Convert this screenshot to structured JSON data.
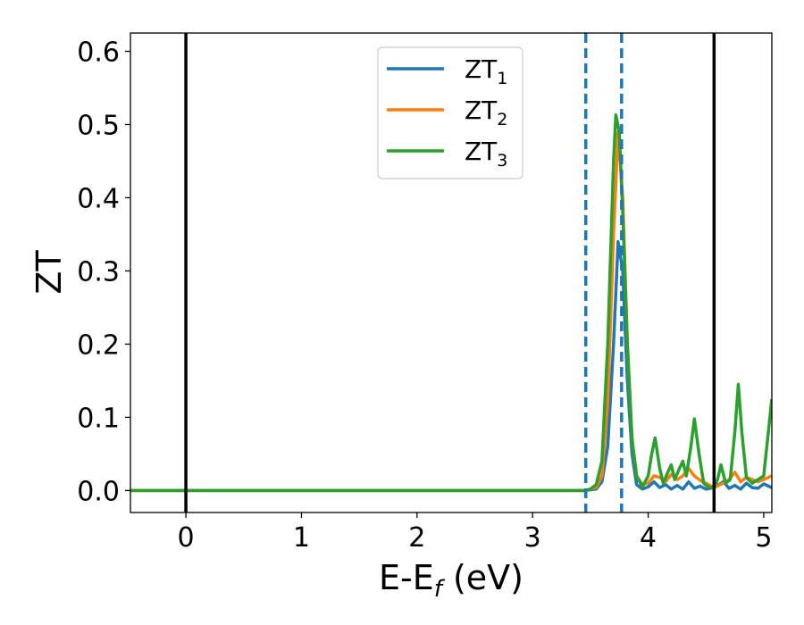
{
  "chart_data": {
    "type": "line",
    "xlabel": {
      "main": "E-E",
      "sub": "f",
      "unit": " (eV)"
    },
    "ylabel": "ZT",
    "xlim": [
      -0.48,
      5.07
    ],
    "ylim": [
      -0.03,
      0.625
    ],
    "x_ticks": [
      0,
      1,
      2,
      3,
      4,
      5
    ],
    "x_tick_labels": [
      "0",
      "1",
      "2",
      "3",
      "4",
      "5"
    ],
    "y_ticks": [
      0.0,
      0.1,
      0.2,
      0.3,
      0.4,
      0.5,
      0.6
    ],
    "y_tick_labels": [
      "0.0",
      "0.1",
      "0.2",
      "0.3",
      "0.4",
      "0.5",
      "0.6"
    ],
    "grid": false,
    "legend": {
      "placement": "top-center"
    },
    "vlines": [
      {
        "x": 0.0,
        "style": "solid",
        "color": "#000000"
      },
      {
        "x": 4.57,
        "style": "solid",
        "color": "#000000"
      },
      {
        "x": 3.46,
        "style": "dashed",
        "color": "#1f77b4"
      },
      {
        "x": 3.77,
        "style": "dashed",
        "color": "#1f77b4"
      }
    ],
    "series": [
      {
        "name": "ZT",
        "name_sub": "1",
        "color": "#1f77b4",
        "points": [
          [
            -0.48,
            0
          ],
          [
            3.45,
            0
          ],
          [
            3.55,
            0.002
          ],
          [
            3.6,
            0.012
          ],
          [
            3.65,
            0.06
          ],
          [
            3.7,
            0.2
          ],
          [
            3.74,
            0.34
          ],
          [
            3.78,
            0.3
          ],
          [
            3.82,
            0.15
          ],
          [
            3.86,
            0.05
          ],
          [
            3.9,
            0.008
          ],
          [
            3.95,
            0.002
          ],
          [
            4.0,
            0.005
          ],
          [
            4.05,
            0.012
          ],
          [
            4.1,
            0.004
          ],
          [
            4.15,
            0.008
          ],
          [
            4.2,
            0.002
          ],
          [
            4.25,
            0.007
          ],
          [
            4.3,
            0.002
          ],
          [
            4.35,
            0.012
          ],
          [
            4.4,
            0.003
          ],
          [
            4.45,
            0.006
          ],
          [
            4.5,
            0.002
          ],
          [
            4.57,
            0.004
          ],
          [
            4.65,
            0.012
          ],
          [
            4.7,
            0.003
          ],
          [
            4.75,
            0.007
          ],
          [
            4.8,
            0.002
          ],
          [
            4.85,
            0.01
          ],
          [
            4.9,
            0.004
          ],
          [
            4.95,
            0.003
          ],
          [
            5.0,
            0.009
          ],
          [
            5.07,
            0.004
          ]
        ]
      },
      {
        "name": "ZT",
        "name_sub": "2",
        "color": "#ff7f0e",
        "points": [
          [
            -0.48,
            0
          ],
          [
            3.45,
            0
          ],
          [
            3.55,
            0.004
          ],
          [
            3.6,
            0.02
          ],
          [
            3.65,
            0.12
          ],
          [
            3.7,
            0.35
          ],
          [
            3.74,
            0.49
          ],
          [
            3.78,
            0.4
          ],
          [
            3.82,
            0.2
          ],
          [
            3.86,
            0.07
          ],
          [
            3.9,
            0.02
          ],
          [
            3.95,
            0.008
          ],
          [
            4.0,
            0.01
          ],
          [
            4.05,
            0.02
          ],
          [
            4.1,
            0.018
          ],
          [
            4.15,
            0.012
          ],
          [
            4.2,
            0.022
          ],
          [
            4.25,
            0.015
          ],
          [
            4.3,
            0.02
          ],
          [
            4.35,
            0.03
          ],
          [
            4.4,
            0.02
          ],
          [
            4.45,
            0.014
          ],
          [
            4.5,
            0.01
          ],
          [
            4.57,
            0.004
          ],
          [
            4.65,
            0.01
          ],
          [
            4.7,
            0.015
          ],
          [
            4.75,
            0.025
          ],
          [
            4.8,
            0.012
          ],
          [
            4.85,
            0.018
          ],
          [
            4.9,
            0.015
          ],
          [
            4.95,
            0.012
          ],
          [
            5.0,
            0.015
          ],
          [
            5.07,
            0.02
          ]
        ]
      },
      {
        "name": "ZT",
        "name_sub": "3",
        "color": "#2ca02c",
        "points": [
          [
            -0.48,
            0
          ],
          [
            3.45,
            0
          ],
          [
            3.5,
            0.002
          ],
          [
            3.55,
            0.008
          ],
          [
            3.6,
            0.04
          ],
          [
            3.65,
            0.2
          ],
          [
            3.7,
            0.45
          ],
          [
            3.72,
            0.513
          ],
          [
            3.75,
            0.49
          ],
          [
            3.78,
            0.38
          ],
          [
            3.82,
            0.2
          ],
          [
            3.86,
            0.07
          ],
          [
            3.9,
            0.02
          ],
          [
            3.95,
            0.005
          ],
          [
            4.0,
            0.02
          ],
          [
            4.03,
            0.05
          ],
          [
            4.06,
            0.072
          ],
          [
            4.1,
            0.03
          ],
          [
            4.13,
            0.01
          ],
          [
            4.17,
            0.025
          ],
          [
            4.2,
            0.035
          ],
          [
            4.23,
            0.015
          ],
          [
            4.27,
            0.03
          ],
          [
            4.3,
            0.04
          ],
          [
            4.33,
            0.02
          ],
          [
            4.37,
            0.06
          ],
          [
            4.4,
            0.098
          ],
          [
            4.44,
            0.05
          ],
          [
            4.48,
            0.01
          ],
          [
            4.52,
            0.005
          ],
          [
            4.57,
            0.004
          ],
          [
            4.6,
            0.015
          ],
          [
            4.63,
            0.035
          ],
          [
            4.67,
            0.01
          ],
          [
            4.71,
            0.015
          ],
          [
            4.75,
            0.08
          ],
          [
            4.78,
            0.145
          ],
          [
            4.81,
            0.08
          ],
          [
            4.85,
            0.018
          ],
          [
            4.9,
            0.01
          ],
          [
            4.95,
            0.015
          ],
          [
            5.0,
            0.02
          ],
          [
            5.04,
            0.08
          ],
          [
            5.07,
            0.125
          ]
        ]
      }
    ]
  }
}
